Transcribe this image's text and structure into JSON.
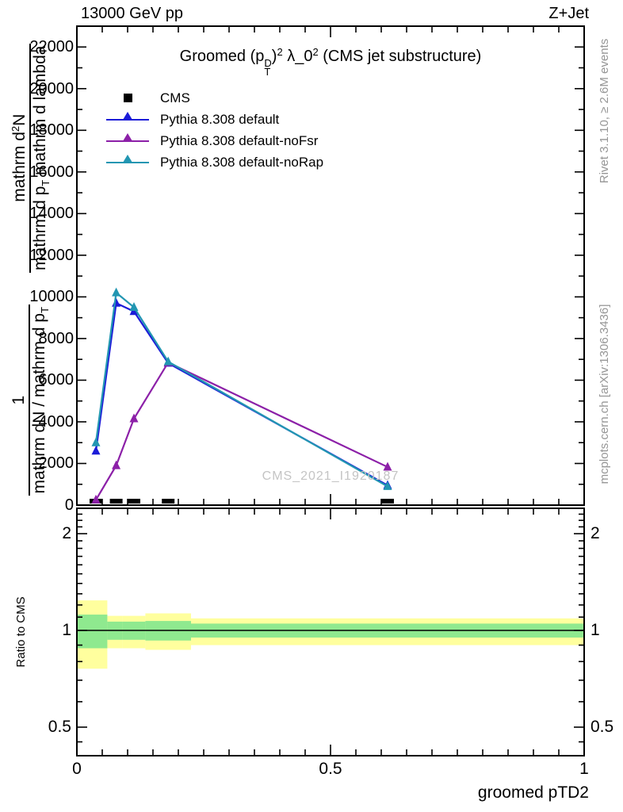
{
  "header": {
    "left": "13000 GeV pp",
    "right": "Z+Jet"
  },
  "title": {
    "lead": "Groomed (p",
    "psup": "D",
    "psub": "T",
    "close": ")",
    "sq1": "2",
    "lam": " λ_0",
    "sq2": "2",
    "tail": " (CMS jet substructure)"
  },
  "legend": {
    "items": [
      {
        "label": "CMS",
        "marker": "square",
        "color": "#000000"
      },
      {
        "label": "Pythia 8.308 default",
        "marker": "triangle-line",
        "color": "#1c1cd8"
      },
      {
        "label": "Pythia 8.308 default-noFsr",
        "marker": "triangle-line",
        "color": "#8c20a8"
      },
      {
        "label": "Pythia 8.308 default-noRap",
        "marker": "triangle-line",
        "color": "#2296b2"
      }
    ]
  },
  "ylabel": {
    "frac1_num": "1",
    "frac1_den_a": "mathrm dN / mathrm d p",
    "frac1_den_sub": "T",
    "frac2_num_a": "mathrm d",
    "frac2_num_sup": "2",
    "frac2_num_b": "N",
    "frac2_den_a": "mathrm d p",
    "frac2_den_sub": "T",
    "frac2_den_b": " mathrm d lambda"
  },
  "ratio_ylabel": "Ratio to CMS",
  "side_texts": {
    "top": "Rivet 3.1.10, ≥ 2.6M events",
    "bottom": "mcplots.cern.ch [arXiv:1306.3436]"
  },
  "watermark": "CMS_2021_I1920187",
  "xlabel": "groomed pTD2",
  "colors": {
    "band_yellow": "#ffff9e",
    "band_green": "#8fe98f",
    "frame": "#000000",
    "gray_text": "#969696",
    "watermark": "#c4c4c4"
  },
  "chart_data": [
    {
      "type": "line",
      "title": "Groomed (p_T^D)^2 λ_0^2 (CMS jet substructure)",
      "xlabel": "groomed pTD2",
      "ylabel": "1 / (mathrm dN / mathrm d p_T)  mathrm d^2N / (mathrm d p_T mathrm d lambda)",
      "xlim": [
        0,
        1
      ],
      "ylim": [
        0,
        23000
      ],
      "grid": false,
      "legend_position": "top-left",
      "x_major_ticks": [
        {
          "v": 0,
          "label": "0"
        },
        {
          "v": 0.5,
          "label": "0.5"
        },
        {
          "v": 1,
          "label": "1"
        }
      ],
      "x_minor_step": 0.05,
      "y_label_step": 2000,
      "y_max_label": 22000,
      "y_minor_step": 1000,
      "bin_edges": [
        0,
        0.06,
        0.09,
        0.135,
        0.225,
        1.0
      ],
      "x": [
        0.0375,
        0.0775,
        0.1125,
        0.18,
        0.6125
      ],
      "series": [
        {
          "name": "CMS",
          "marker": "square",
          "color": "#000000",
          "values": [
            0,
            0,
            0,
            0,
            0
          ]
        },
        {
          "name": "Pythia 8.308 default",
          "marker": "triangle",
          "color": "#1c1cd8",
          "values": [
            2600,
            9700,
            9300,
            6820,
            950
          ]
        },
        {
          "name": "Pythia 8.308 default-noFsr",
          "marker": "triangle",
          "color": "#8c20a8",
          "values": [
            250,
            1900,
            4150,
            6850,
            1830
          ]
        },
        {
          "name": "Pythia 8.308 default-noRap",
          "marker": "triangle",
          "color": "#2296b2",
          "values": [
            3000,
            10200,
            9500,
            6890,
            900
          ]
        }
      ]
    },
    {
      "type": "area",
      "subtype": "ratio-bands",
      "ylabel": "Ratio to CMS",
      "yscale": "log",
      "ylim": [
        0.41,
        2.4
      ],
      "reference_line": 1.0,
      "y_ticks": [
        {
          "v": 0.5,
          "label": "0.5"
        },
        {
          "v": 1,
          "label": "1"
        },
        {
          "v": 2,
          "label": "2"
        }
      ],
      "y_minor_ticks": [
        0.45,
        0.6,
        0.7,
        0.8,
        0.9,
        1.1,
        1.2,
        1.3,
        1.4,
        1.5,
        1.6,
        1.7,
        1.8,
        1.9,
        2.1,
        2.2,
        2.3
      ],
      "bands": [
        {
          "x": [
            0,
            0.06
          ],
          "yellow": [
            0.76,
            1.24
          ],
          "green": [
            0.88,
            1.12
          ]
        },
        {
          "x": [
            0.06,
            0.09
          ],
          "yellow": [
            0.88,
            1.11
          ],
          "green": [
            0.935,
            1.065
          ]
        },
        {
          "x": [
            0.09,
            0.135
          ],
          "yellow": [
            0.88,
            1.11
          ],
          "green": [
            0.935,
            1.065
          ]
        },
        {
          "x": [
            0.135,
            0.225
          ],
          "yellow": [
            0.87,
            1.13
          ],
          "green": [
            0.93,
            1.07
          ]
        },
        {
          "x": [
            0.225,
            1.0
          ],
          "yellow": [
            0.9,
            1.09
          ],
          "green": [
            0.95,
            1.05
          ]
        }
      ]
    }
  ]
}
